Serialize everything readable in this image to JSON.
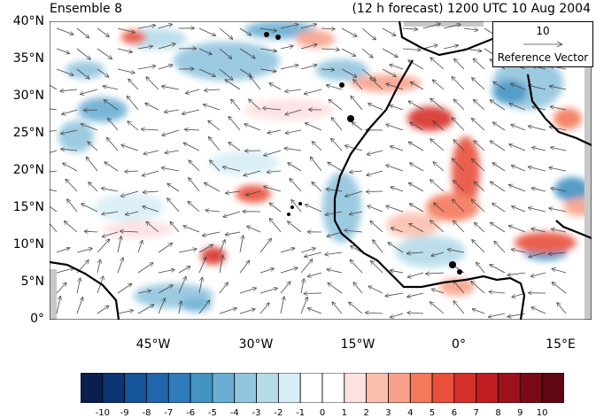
{
  "header": {
    "title_left": "Ensemble 8",
    "title_right": "(12 h forecast) 1200 UTC 10 Aug 2004"
  },
  "map": {
    "lat_labels": [
      "40°N",
      "35°N",
      "30°N",
      "25°N",
      "20°N",
      "15°N",
      "10°N",
      "5°N",
      "0°"
    ],
    "lon_labels": [
      "45°W",
      "30°W",
      "15°W",
      "0°",
      "15°E"
    ],
    "colors": {
      "coast": "#000000",
      "vector": "#444444",
      "land_mask": "#c8c8c8"
    }
  },
  "reference_vector": {
    "magnitude": "10",
    "label": "Reference Vector"
  },
  "colorbar": {
    "labels": [
      "-10",
      "-9",
      "-8",
      "-7",
      "-6",
      "-5",
      "-4",
      "-3",
      "-2",
      "-1",
      "0",
      "1",
      "2",
      "3",
      "4",
      "5",
      "6",
      "7",
      "8",
      "9",
      "10"
    ],
    "colors": [
      "#0b1f4d",
      "#0b3573",
      "#15539a",
      "#2166ac",
      "#2f7bbc",
      "#4393c3",
      "#6aaed3",
      "#92c5de",
      "#b5dbe9",
      "#d8eef6",
      "#ffffff",
      "#ffffff",
      "#fde0e0",
      "#fbbfae",
      "#f8a28b",
      "#f4785a",
      "#e8503a",
      "#d6302a",
      "#c01d22",
      "#9f0f1c",
      "#7a0b16",
      "#600812"
    ]
  }
}
